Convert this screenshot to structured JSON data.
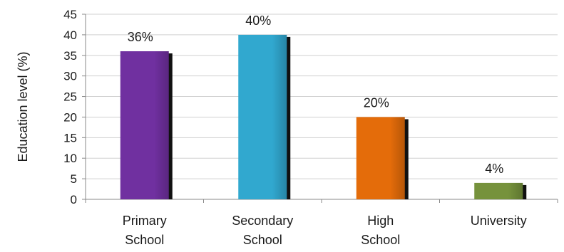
{
  "chart_data": {
    "type": "bar",
    "categories": [
      [
        "Primary",
        "School"
      ],
      [
        "Secondary",
        "School"
      ],
      [
        "High",
        "School"
      ],
      [
        "University"
      ]
    ],
    "values": [
      36,
      40,
      20,
      4
    ],
    "data_labels": [
      "36%",
      "40%",
      "20%",
      "4%"
    ],
    "bar_colors": [
      "#7030a0",
      "#31a8cf",
      "#e46c0a",
      "#76923c"
    ],
    "ylabel": "Education level (%)",
    "xlabel": "",
    "title": "",
    "ylim": [
      0,
      45
    ],
    "yticks": [
      0,
      5,
      10,
      15,
      20,
      25,
      30,
      35,
      40,
      45
    ],
    "grid": true,
    "legend": "none"
  }
}
